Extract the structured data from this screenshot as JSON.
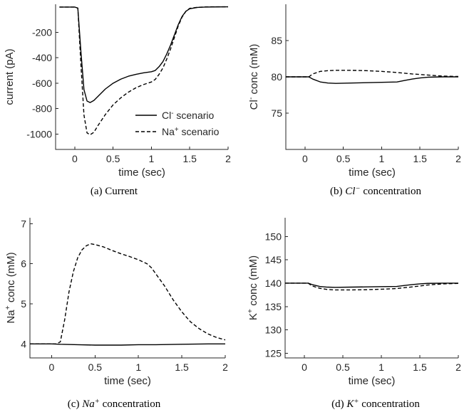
{
  "colors": {
    "series": "#000000",
    "axis": "#262626"
  },
  "chart_data": [
    {
      "id": "a",
      "type": "line",
      "caption": {
        "prefix": "(a) ",
        "text": "Current",
        "italic": false,
        "suffix": ""
      },
      "xlabel": "time (sec)",
      "ylabel": {
        "pre": "current (pA)",
        "sup": "",
        "post": ""
      },
      "xlim": [
        -0.25,
        2
      ],
      "ylim": [
        -1120,
        20
      ],
      "xticks": [
        0,
        0.5,
        1,
        1.5,
        2
      ],
      "xticklabels": [
        "0",
        "0.5",
        "1",
        "1.5",
        "2"
      ],
      "yticks": [
        -1000,
        -800,
        -600,
        -400,
        -200
      ],
      "yticklabels": [
        "-1000",
        "-800",
        "-600",
        "-400",
        "-200"
      ],
      "legend": {
        "position": "bottom-right",
        "entries": [
          {
            "pre": "Cl",
            "sup": "-",
            "post": " scenario",
            "style": "solid"
          },
          {
            "pre": "Na",
            "sup": "+",
            "post": " scenario",
            "style": "dashed"
          }
        ]
      },
      "series": [
        {
          "style": "solid",
          "x": [
            -0.2,
            0,
            0.04,
            0.08,
            0.12,
            0.16,
            0.2,
            0.25,
            0.3,
            0.4,
            0.5,
            0.6,
            0.7,
            0.8,
            0.9,
            1.0,
            1.05,
            1.1,
            1.15,
            1.2,
            1.25,
            1.3,
            1.35,
            1.4,
            1.45,
            1.5,
            1.6,
            1.7,
            1.8,
            2.0
          ],
          "y": [
            -2,
            -2,
            -10,
            -350,
            -650,
            -740,
            -752,
            -735,
            -705,
            -645,
            -600,
            -568,
            -545,
            -530,
            -518,
            -510,
            -500,
            -470,
            -430,
            -370,
            -300,
            -220,
            -140,
            -75,
            -35,
            -15,
            -5,
            -2,
            -1,
            0
          ]
        },
        {
          "style": "dashed",
          "x": [
            -0.2,
            0,
            0.04,
            0.08,
            0.12,
            0.16,
            0.2,
            0.25,
            0.3,
            0.4,
            0.5,
            0.6,
            0.7,
            0.8,
            0.9,
            1.0,
            1.05,
            1.1,
            1.15,
            1.2,
            1.25,
            1.3,
            1.35,
            1.4,
            1.45,
            1.5,
            1.6,
            1.7,
            1.8,
            2.0
          ],
          "y": [
            -2,
            -2,
            -10,
            -450,
            -850,
            -990,
            -1005,
            -985,
            -935,
            -845,
            -770,
            -715,
            -670,
            -635,
            -610,
            -590,
            -570,
            -530,
            -480,
            -410,
            -330,
            -240,
            -150,
            -80,
            -35,
            -12,
            -4,
            -1,
            0,
            0
          ]
        }
      ]
    },
    {
      "id": "b",
      "type": "line",
      "caption": {
        "prefix": "(b) ",
        "text": "Cl",
        "italic": true,
        "sup": "−",
        "suffix": " concentration"
      },
      "xlabel": "time (sec)",
      "ylabel": {
        "pre": "Cl",
        "sup": "-",
        "post": " conc (mM)"
      },
      "xlim": [
        -0.25,
        2
      ],
      "ylim": [
        70,
        90
      ],
      "xticks": [
        0,
        0.5,
        1,
        1.5,
        2
      ],
      "xticklabels": [
        "0",
        "0.5",
        "1",
        "1.5",
        "2"
      ],
      "yticks": [
        75,
        80,
        85
      ],
      "yticklabels": [
        "75",
        "80",
        "85"
      ],
      "series": [
        {
          "style": "solid",
          "x": [
            -0.25,
            0,
            0.05,
            0.1,
            0.2,
            0.3,
            0.4,
            0.6,
            0.8,
            1.0,
            1.2,
            1.3,
            1.4,
            1.5,
            1.6,
            1.8,
            2.0
          ],
          "y": [
            80,
            80,
            80,
            79.7,
            79.3,
            79.15,
            79.1,
            79.15,
            79.2,
            79.25,
            79.3,
            79.5,
            79.7,
            79.85,
            79.95,
            80,
            80
          ]
        },
        {
          "style": "dashed",
          "x": [
            -0.25,
            0,
            0.05,
            0.1,
            0.2,
            0.3,
            0.4,
            0.6,
            0.8,
            1.0,
            1.2,
            1.4,
            1.6,
            1.8,
            2.0
          ],
          "y": [
            80,
            80,
            80,
            80.4,
            80.75,
            80.85,
            80.9,
            80.9,
            80.85,
            80.75,
            80.6,
            80.4,
            80.25,
            80.1,
            80.05
          ]
        }
      ]
    },
    {
      "id": "c",
      "type": "line",
      "caption": {
        "prefix": "(c) ",
        "text": "Na",
        "italic": true,
        "sup": "+",
        "suffix": " concentration"
      },
      "xlabel": "time (sec)",
      "ylabel": {
        "pre": "Na",
        "sup": "+",
        "post": " conc (mM)"
      },
      "xlim": [
        -0.25,
        2
      ],
      "ylim": [
        3.65,
        7.15
      ],
      "xticks": [
        0,
        0.5,
        1,
        1.5,
        2
      ],
      "xticklabels": [
        "0",
        "0.5",
        "1",
        "1.5",
        "2"
      ],
      "yticks": [
        4,
        5,
        6,
        7
      ],
      "yticklabels": [
        "4",
        "5",
        "6",
        "7"
      ],
      "series": [
        {
          "style": "solid",
          "x": [
            -0.25,
            0,
            0.1,
            0.3,
            0.5,
            0.8,
            1.0,
            1.2,
            1.5,
            1.8,
            2.0
          ],
          "y": [
            4.0,
            4.0,
            3.99,
            3.98,
            3.97,
            3.97,
            3.98,
            3.98,
            3.99,
            4.0,
            4.0
          ]
        },
        {
          "style": "dashed",
          "x": [
            -0.25,
            0,
            0.05,
            0.1,
            0.15,
            0.2,
            0.25,
            0.3,
            0.35,
            0.4,
            0.45,
            0.5,
            0.6,
            0.7,
            0.8,
            0.9,
            1.0,
            1.1,
            1.15,
            1.2,
            1.3,
            1.4,
            1.5,
            1.6,
            1.7,
            1.8,
            1.9,
            2.0
          ],
          "y": [
            4.0,
            4.0,
            4.0,
            4.05,
            4.6,
            5.3,
            5.8,
            6.15,
            6.35,
            6.45,
            6.5,
            6.48,
            6.42,
            6.33,
            6.25,
            6.18,
            6.1,
            6.0,
            5.9,
            5.75,
            5.45,
            5.1,
            4.8,
            4.55,
            4.38,
            4.25,
            4.16,
            4.1
          ]
        }
      ]
    },
    {
      "id": "d",
      "type": "line",
      "caption": {
        "prefix": "(d) ",
        "text": "K",
        "italic": true,
        "sup": "+",
        "suffix": " concentration"
      },
      "xlabel": "time (sec)",
      "ylabel": {
        "pre": "K",
        "sup": "+",
        "post": " conc (mM)"
      },
      "xlim": [
        -0.25,
        2
      ],
      "ylim": [
        124,
        154
      ],
      "xticks": [
        0,
        0.5,
        1,
        1.5,
        2
      ],
      "xticklabels": [
        "0",
        "0.5",
        "1",
        "1.5",
        "2"
      ],
      "yticks": [
        125,
        130,
        135,
        140,
        145,
        150
      ],
      "yticklabels": [
        "125",
        "130",
        "135",
        "140",
        "145",
        "150"
      ],
      "series": [
        {
          "style": "solid",
          "x": [
            -0.25,
            0,
            0.05,
            0.1,
            0.2,
            0.3,
            0.4,
            0.6,
            0.8,
            1.0,
            1.2,
            1.3,
            1.4,
            1.5,
            1.6,
            1.8,
            2.0
          ],
          "y": [
            140,
            140,
            140,
            139.7,
            139.3,
            139.15,
            139.1,
            139.15,
            139.2,
            139.25,
            139.3,
            139.5,
            139.7,
            139.85,
            139.95,
            140,
            140
          ]
        },
        {
          "style": "dashed",
          "x": [
            -0.25,
            0,
            0.05,
            0.1,
            0.2,
            0.3,
            0.4,
            0.6,
            0.8,
            1.0,
            1.2,
            1.4,
            1.6,
            1.8,
            2.0
          ],
          "y": [
            140,
            140,
            140,
            139.4,
            138.9,
            138.65,
            138.55,
            138.55,
            138.6,
            138.7,
            138.85,
            139.2,
            139.6,
            139.85,
            139.95
          ]
        }
      ]
    }
  ]
}
